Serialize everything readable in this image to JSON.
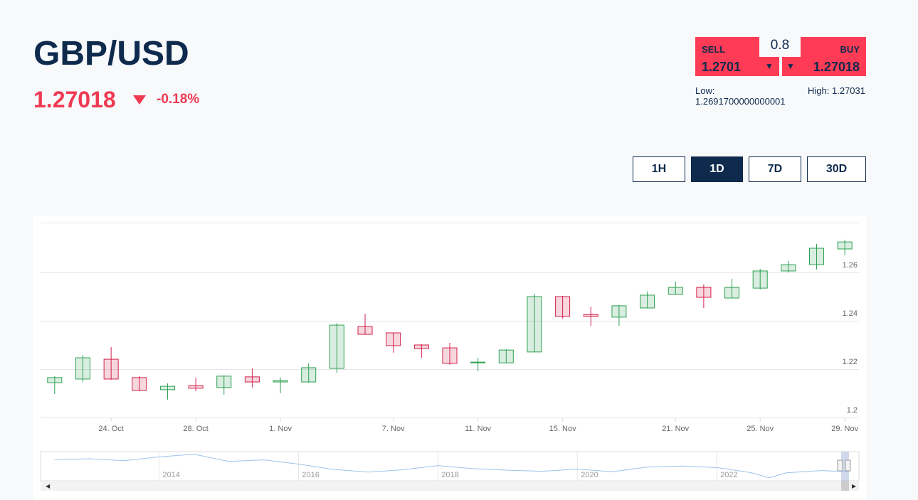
{
  "header": {
    "title": "GBP/USD",
    "price": "1.27018",
    "change": "-0.18%"
  },
  "trade": {
    "sell_label": "SELL",
    "sell_price": "1.2701",
    "spread": "0.8",
    "buy_label": "BUY",
    "buy_price": "1.27018",
    "low_label": "Low:",
    "low": "1.2691700000000001",
    "high_label": "High:",
    "high": "1.27031"
  },
  "ranges": [
    "1H",
    "1D",
    "7D",
    "30D"
  ],
  "active_range": "1D",
  "chart_data": [
    {
      "type": "candlestick",
      "categories": [
        null,
        null,
        "24. Oct",
        null,
        null,
        "28. Oct",
        null,
        null,
        "1. Nov",
        null,
        null,
        null,
        "7. Nov",
        null,
        null,
        "11. Nov",
        null,
        null,
        "15. Nov",
        null,
        null,
        null,
        "21. Nov",
        null,
        null,
        "25. Nov",
        null,
        null,
        "29. Nov"
      ],
      "open": [
        1.2144,
        1.2159,
        1.2241,
        1.2165,
        1.2115,
        1.2132,
        1.2124,
        1.2168,
        1.2147,
        1.2147,
        1.2203,
        1.2376,
        1.235,
        1.23,
        1.2288,
        1.2226,
        1.2226,
        1.2271,
        1.25,
        1.2426,
        1.2415,
        1.2453,
        1.2509,
        1.2538,
        1.2494,
        1.2535,
        1.2606,
        1.2632,
        1.2697
      ],
      "high": [
        1.2171,
        1.2259,
        1.2291,
        1.2171,
        1.2141,
        1.2165,
        1.2174,
        1.2203,
        1.2165,
        1.2224,
        1.2391,
        1.2429,
        1.235,
        1.2303,
        1.2309,
        1.2247,
        1.2282,
        1.2512,
        1.2503,
        1.2459,
        1.2465,
        1.2521,
        1.2562,
        1.255,
        1.2574,
        1.2615,
        1.2647,
        1.2718,
        1.2735
      ],
      "low": [
        1.2097,
        1.2147,
        1.2156,
        1.2109,
        1.2074,
        1.2109,
        1.2094,
        1.2124,
        1.21,
        1.2144,
        1.2185,
        1.2344,
        1.2268,
        1.2247,
        1.2218,
        1.2191,
        1.2226,
        1.2271,
        1.2409,
        1.2379,
        1.2379,
        1.2453,
        1.2509,
        1.2453,
        1.2494,
        1.2529,
        1.26,
        1.2612,
        1.2671
      ],
      "close": [
        1.2165,
        1.2247,
        1.2159,
        1.2112,
        1.2129,
        1.2121,
        1.2171,
        1.2147,
        1.2153,
        1.2206,
        1.2382,
        1.2344,
        1.2297,
        1.2285,
        1.2224,
        1.2229,
        1.2279,
        1.25,
        1.2418,
        1.2418,
        1.2462,
        1.2506,
        1.2538,
        1.2497,
        1.2538,
        1.2606,
        1.2632,
        1.27,
        1.2726
      ],
      "up_color": "#2ea052",
      "down_color": "#d1204a",
      "ylim": [
        1.2,
        1.28
      ],
      "yticks": [
        1.2,
        1.22,
        1.24,
        1.26
      ],
      "grid": true
    },
    {
      "type": "line",
      "x": [
        2012.5,
        2013,
        2013.5,
        2014,
        2014.5,
        2015,
        2015.5,
        2016,
        2016.5,
        2017,
        2017.5,
        2018,
        2018.5,
        2019,
        2019.5,
        2020,
        2020.5,
        2021,
        2021.5,
        2022,
        2022.5,
        2022.75,
        2023,
        2023.5,
        2023.9
      ],
      "values": [
        1.56,
        1.58,
        1.53,
        1.63,
        1.7,
        1.51,
        1.55,
        1.44,
        1.3,
        1.23,
        1.29,
        1.4,
        1.32,
        1.28,
        1.25,
        1.31,
        1.24,
        1.36,
        1.39,
        1.35,
        1.21,
        1.08,
        1.21,
        1.27,
        1.24
      ],
      "color": "#9cc3ea",
      "xlim": [
        2012.3,
        2024.04
      ],
      "xticks": [
        2014,
        2016,
        2018,
        2020,
        2022
      ],
      "ylim": [
        1.0,
        1.75
      ]
    }
  ]
}
